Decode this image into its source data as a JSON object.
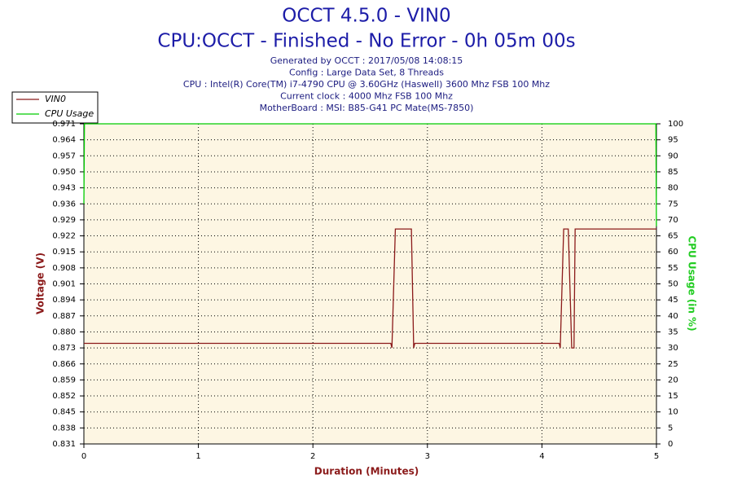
{
  "chart_data": {
    "type": "line",
    "title": "OCCT 4.5.0 - VIN0",
    "subtitle": "CPU:OCCT - Finished - No Error - 0h 05m 00s",
    "info": [
      "Generated by OCCT : 2017/05/08 14:08:15",
      "Config : Large Data Set, 8 Threads",
      "CPU : Intel(R) Core(TM) i7-4790 CPU @ 3.60GHz (Haswell) 3600 Mhz FSB 100 Mhz",
      "Current clock : 4000 Mhz FSB 100 Mhz",
      "MotherBoard : MSI: B85-G41 PC Mate(MS-7850)"
    ],
    "xlabel": "Duration (Minutes)",
    "ylabel": "Voltage (V)",
    "y2label": "CPU Usage (in %)",
    "xlim": [
      0,
      5
    ],
    "xticks": [
      0,
      1,
      2,
      3,
      4,
      5
    ],
    "ylim": [
      0.831,
      0.971
    ],
    "yticks": [
      0.831,
      0.838,
      0.845,
      0.852,
      0.859,
      0.866,
      0.873,
      {
        "value": 0.88,
        "label": "0.880"
      },
      0.887,
      0.894,
      0.901,
      0.908,
      0.915,
      0.922,
      0.929,
      0.936,
      0.943,
      {
        "value": 0.95,
        "label": "0.950"
      },
      0.957,
      0.964,
      0.971
    ],
    "y2lim": [
      0,
      100
    ],
    "y2ticks": [
      0,
      5,
      10,
      15,
      20,
      25,
      30,
      35,
      40,
      45,
      50,
      55,
      60,
      65,
      70,
      75,
      80,
      85,
      90,
      95,
      100
    ],
    "grid": true,
    "series": [
      {
        "name": "VIN0",
        "color": "#8b1a1a",
        "x": [
          0,
          2.68,
          2.69,
          2.72,
          2.86,
          2.88,
          2.89,
          4.15,
          4.16,
          4.19,
          4.23,
          4.26,
          4.28,
          4.29,
          5
        ],
        "values": [
          0.875,
          0.875,
          0.873,
          0.925,
          0.925,
          0.873,
          0.875,
          0.875,
          0.873,
          0.925,
          0.925,
          0.873,
          0.873,
          0.925,
          0.925
        ]
      },
      {
        "name": "CPU Usage",
        "color": "#00cc00",
        "axis": "y2",
        "x": [
          0,
          0.005,
          4.995,
          5
        ],
        "values": [
          75,
          100,
          100,
          68
        ]
      }
    ]
  }
}
